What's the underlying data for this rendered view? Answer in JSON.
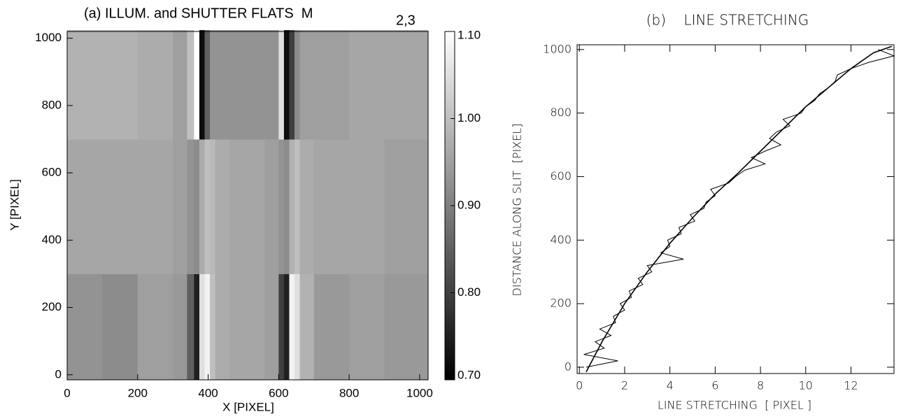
{
  "chart_data": [
    {
      "type": "heatmap",
      "title": "(a) ILLUM. and SHUTTER FLATS  M",
      "title_subscript": "2,3",
      "x_label": "X [PIXEL]",
      "y_label": "Y [PIXEL]",
      "xlim": [
        0,
        1024
      ],
      "ylim": [
        -15,
        1020
      ],
      "xticks": [
        0,
        200,
        400,
        600,
        800,
        1000
      ],
      "yticks": [
        0,
        200,
        400,
        600,
        800,
        1000
      ],
      "x_edges": [
        0,
        100,
        200,
        300,
        340,
        360,
        375,
        390,
        405,
        420,
        460,
        560,
        600,
        615,
        630,
        645,
        660,
        700,
        800,
        900,
        1024
      ],
      "y_edges": [
        -15,
        300,
        700,
        1024
      ],
      "z": [
        [
          0.93,
          0.92,
          0.95,
          0.94,
          0.85,
          0.75,
          1.05,
          1.08,
          1.0,
          0.97,
          0.96,
          0.95,
          0.8,
          0.75,
          1.08,
          1.05,
          0.98,
          0.94,
          0.95,
          0.94
        ],
        [
          0.96,
          0.96,
          0.96,
          0.95,
          0.93,
          0.92,
          0.97,
          1.0,
          0.99,
          0.97,
          0.96,
          0.95,
          0.93,
          0.92,
          0.98,
          1.0,
          0.97,
          0.96,
          0.96,
          0.95
        ],
        [
          0.98,
          0.98,
          0.97,
          0.95,
          1.0,
          1.1,
          0.72,
          0.85,
          0.93,
          0.93,
          0.93,
          0.93,
          1.05,
          0.72,
          0.8,
          0.92,
          0.95,
          0.95,
          0.96,
          0.96
        ]
      ],
      "clim": [
        0.7,
        1.1
      ],
      "cticks": [
        {
          "value": 0.7,
          "label": "0.70"
        },
        {
          "value": 0.8,
          "label": "0.80"
        },
        {
          "value": 0.9,
          "label": "0.90"
        },
        {
          "value": 1.0,
          "label": "1.00"
        },
        {
          "value": 1.1,
          "label": "1.10"
        }
      ]
    },
    {
      "type": "line",
      "title": "(b)    LINE STRETCHING",
      "x_label": "LINE STRETCHING  [ PIXEL ]",
      "y_label": "DISTANCE ALONG SLIT  [PIXEL]",
      "xlim": [
        -0.1,
        13.9
      ],
      "ylim": [
        -20,
        1015
      ],
      "xticks": [
        0,
        2,
        4,
        6,
        8,
        10,
        12
      ],
      "yticks": [
        0,
        200,
        400,
        600,
        800,
        1000
      ],
      "series": [
        {
          "color": "#000000",
          "x": [
            0.3,
            1.7,
            0.2,
            1.1,
            0.7,
            1.4,
            0.9,
            1.6,
            1.5,
            2.0,
            1.8,
            2.3,
            2.2,
            2.8,
            2.6,
            3.2,
            3.0,
            4.6,
            3.6,
            4.0,
            3.9,
            4.5,
            4.4,
            5.1,
            4.9,
            5.5,
            5.6,
            6.0,
            5.8,
            6.6,
            6.9,
            7.3,
            8.2,
            7.6,
            8.2,
            8.9,
            8.4,
            8.7,
            9.3,
            9.0,
            9.8,
            10.0,
            10.4,
            10.6,
            11.0,
            11.3,
            11.4,
            12.0,
            12.8,
            13.9,
            13.2
          ],
          "y": [
            0,
            20,
            40,
            60,
            80,
            100,
            120,
            140,
            160,
            180,
            200,
            220,
            240,
            260,
            280,
            300,
            320,
            340,
            360,
            380,
            400,
            420,
            440,
            460,
            480,
            500,
            520,
            540,
            560,
            580,
            600,
            620,
            640,
            660,
            680,
            700,
            720,
            740,
            760,
            780,
            800,
            820,
            840,
            860,
            880,
            900,
            920,
            940,
            960,
            980,
            1000
          ]
        },
        {
          "color": "#000000",
          "x": [
            0.3,
            1,
            2,
            3,
            4,
            5,
            6,
            7,
            8,
            9,
            10,
            11,
            12,
            13,
            13.8
          ],
          "y": [
            -15,
            80,
            200,
            300,
            390,
            470,
            545,
            610,
            680,
            750,
            820,
            880,
            940,
            990,
            1010
          ]
        }
      ]
    }
  ]
}
